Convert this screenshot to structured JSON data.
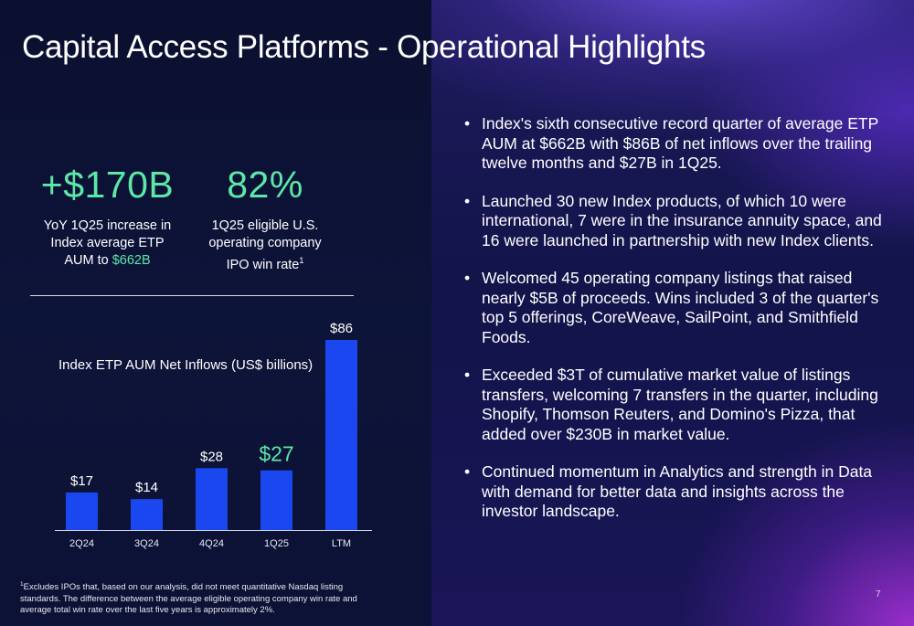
{
  "slide": {
    "title": "Capital Access Platforms - Operational Highlights",
    "page_number": "7"
  },
  "stats": [
    {
      "value": "+$170B",
      "desc_lines": [
        "YoY 1Q25 increase in",
        "Index average ETP"
      ],
      "desc_last_prefix": "AUM to ",
      "desc_last_highlight": "$662B"
    },
    {
      "value": "82%",
      "desc_lines": [
        "1Q25 eligible U.S.",
        "operating company"
      ],
      "desc_last_prefix": "IPO win rate",
      "desc_footnote_mark": "1"
    }
  ],
  "bullets": [
    "Index's sixth consecutive record quarter of average ETP AUM at $662B with $86B of net inflows over the trailing twelve months and $27B in 1Q25.",
    "Launched 30 new Index products, of which 10 were international, 7 were in the insurance annuity space, and 16 were launched in partnership with new Index clients.",
    "Welcomed 45 operating company listings that raised nearly $5B of proceeds. Wins included 3 of the quarter's top 5 offerings, CoreWeave, SailPoint, and Smithfield Foods.",
    "Exceeded $3T of cumulative market value of listings transfers, welcoming 7 transfers in the quarter, including Shopify, Thomson Reuters, and Domino's Pizza, that added over $230B in market value.",
    "Continued momentum in Analytics and strength in Data with demand for better data and insights across the investor landscape."
  ],
  "bullet_symbol": "•",
  "footnote": {
    "mark": "1",
    "text": "Excludes IPOs that, based on our analysis, did not meet quantitative Nasdaq listing standards. The difference between the average eligible operating company win rate and average total win rate over the last five years is approximately 2%."
  },
  "chart_data": {
    "type": "bar",
    "title": "Index ETP AUM Net Inflows (US$ billions)",
    "categories": [
      "2Q24",
      "3Q24",
      "4Q24",
      "1Q25",
      "LTM"
    ],
    "values": [
      17,
      14,
      28,
      27,
      86
    ],
    "data_labels": [
      "$17",
      "$14",
      "$28",
      "$27",
      "$86"
    ],
    "highlight_index": 3,
    "bar_color": "#1a47f0",
    "highlight_label_color": "#5de8a8",
    "label_color": "#ffffff"
  },
  "colors": {
    "accent_green": "#5de8a8",
    "bar_blue": "#1a47f0"
  }
}
